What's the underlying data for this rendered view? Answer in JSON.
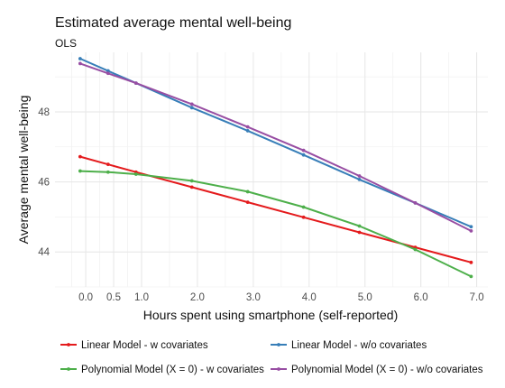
{
  "chart_data": {
    "type": "line",
    "title": "Estimated average mental well-being",
    "subtitle": "OLS",
    "xlabel": "Hours spent using smartphone (self-reported)",
    "ylabel": "Average mental well-being",
    "xlim": [
      -0.55,
      7.2
    ],
    "ylim": [
      43.0,
      49.7
    ],
    "x_ticks": [
      0.0,
      0.5,
      1.0,
      2.0,
      3.0,
      4.0,
      5.0,
      6.0,
      7.0
    ],
    "x_tick_labels": [
      "0.0",
      "0.5",
      "1.0",
      "2.0",
      "3.0",
      "4.0",
      "5.0",
      "6.0",
      "7.0"
    ],
    "y_ticks": [
      44,
      46,
      48
    ],
    "y_tick_labels": [
      "44",
      "46",
      "48"
    ],
    "grid": true,
    "legend_position": "bottom",
    "x": [
      -0.1,
      0.4,
      0.9,
      1.9,
      2.9,
      3.9,
      4.9,
      5.9,
      6.9
    ],
    "series": [
      {
        "name": "Linear Model - w covariates",
        "color": "#e41a1c",
        "values": [
          46.72,
          46.5,
          46.28,
          45.85,
          45.42,
          44.99,
          44.56,
          44.13,
          43.7
        ]
      },
      {
        "name": "Linear Model - w/o covariates",
        "color": "#377eb8",
        "values": [
          49.52,
          49.17,
          48.82,
          48.12,
          47.46,
          46.77,
          46.07,
          45.4,
          44.72
        ]
      },
      {
        "name": "Polynomial Model (X = 0) - w covariates",
        "color": "#4daf4a",
        "values": [
          46.31,
          46.28,
          46.22,
          46.03,
          45.72,
          45.28,
          44.74,
          44.07,
          43.3
        ]
      },
      {
        "name": "Polynomial Model (X = 0) - w/o covariates",
        "color": "#984ea3",
        "values": [
          49.38,
          49.1,
          48.82,
          48.22,
          47.57,
          46.9,
          46.17,
          45.4,
          44.6
        ]
      }
    ]
  }
}
